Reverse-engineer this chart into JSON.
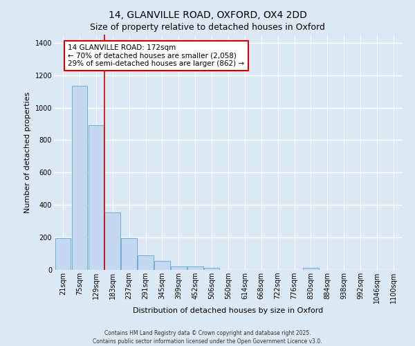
{
  "title": "14, GLANVILLE ROAD, OXFORD, OX4 2DD",
  "subtitle": "Size of property relative to detached houses in Oxford",
  "xlabel": "Distribution of detached houses by size in Oxford",
  "ylabel": "Number of detached properties",
  "bins": [
    "21sqm",
    "75sqm",
    "129sqm",
    "183sqm",
    "237sqm",
    "291sqm",
    "345sqm",
    "399sqm",
    "452sqm",
    "506sqm",
    "560sqm",
    "614sqm",
    "668sqm",
    "722sqm",
    "776sqm",
    "830sqm",
    "884sqm",
    "938sqm",
    "992sqm",
    "1046sqm",
    "1100sqm"
  ],
  "values": [
    197,
    1133,
    893,
    352,
    197,
    90,
    55,
    22,
    20,
    13,
    0,
    0,
    0,
    0,
    0,
    13,
    0,
    0,
    0,
    0,
    0
  ],
  "bar_color": "#c5d8f0",
  "bar_edge_color": "#6baed6",
  "background_color": "#dce9f5",
  "grid_color": "#ffffff",
  "vline_color": "#cc0000",
  "vline_x_index": 2.5,
  "annotation_text": "14 GLANVILLE ROAD: 172sqm\n← 70% of detached houses are smaller (2,058)\n29% of semi-detached houses are larger (862) →",
  "footer1": "Contains HM Land Registry data © Crown copyright and database right 2025.",
  "footer2": "Contains public sector information licensed under the Open Government Licence v3.0.",
  "ylim": [
    0,
    1450
  ],
  "yticks": [
    0,
    200,
    400,
    600,
    800,
    1000,
    1200,
    1400
  ],
  "title_fontsize": 10,
  "subtitle_fontsize": 9,
  "xlabel_fontsize": 8,
  "ylabel_fontsize": 8,
  "tick_fontsize": 7,
  "annotation_fontsize": 7.5,
  "footer_fontsize": 5.5
}
